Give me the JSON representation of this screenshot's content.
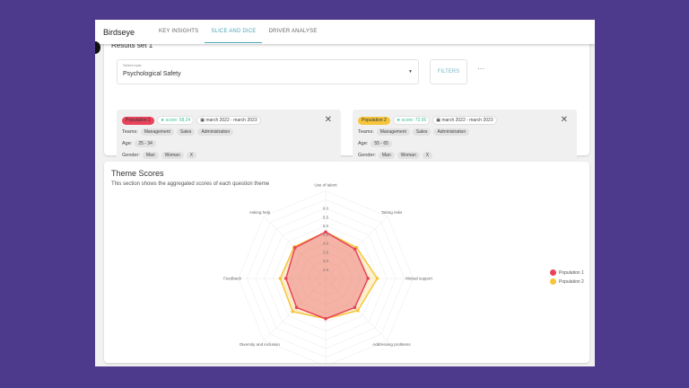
{
  "header": {
    "brand": "Birdseye",
    "tabs": [
      {
        "label": "KEY INSIGHTS"
      },
      {
        "label": "SLICE AND DICE",
        "active": true
      },
      {
        "label": "DRIVER ANALYSE"
      }
    ]
  },
  "results": {
    "title": "Results set 1",
    "topic_label": "Select topic",
    "topic_value": "Psychological Safety",
    "filters_label": "FILTERS",
    "more_label": "···",
    "populations": [
      {
        "name": "Population 1",
        "color": "#e8435a",
        "score": "score: 58.24",
        "date": "march 2022 - march 2023",
        "teams_label": "Teams:",
        "teams": [
          "Management",
          "Sales",
          "Administration"
        ],
        "age_label": "Age:",
        "age": "25 - 34",
        "gender_label": "Gender:",
        "gender": [
          "Man",
          "Woman",
          "X"
        ]
      },
      {
        "name": "Population 2",
        "color": "#f5c53b",
        "score": "score: 72.05",
        "date": "march 2022 - march 2023",
        "teams_label": "Teams:",
        "teams": [
          "Management",
          "Sales",
          "Administration"
        ],
        "age_label": "Age:",
        "age": "55 - 65",
        "gender_label": "Gender:",
        "gender": [
          "Man",
          "Woman",
          "X"
        ]
      }
    ]
  },
  "theme": {
    "title": "Theme Scores",
    "subtitle": "This section shows the aggregated scores of each question theme"
  },
  "chart_data": {
    "type": "radar",
    "axes": [
      "Use of talent",
      "Taking risks",
      "Mutual support",
      "Addressing problems",
      "Dealing with mistakes",
      "Diversity and inclusion",
      "Feedback",
      "Asking help"
    ],
    "rlim": [
      2.0,
      6.0
    ],
    "ticks": [
      "6.0",
      "5.5",
      "5.0",
      "4.5",
      "4.0",
      "3.5",
      "3.0",
      "2.5"
    ],
    "tick_values": [
      6.0,
      5.5,
      5.0,
      4.5,
      4.0,
      3.5,
      3.0,
      2.5
    ],
    "series": [
      {
        "name": "Population 1",
        "color": "#e8435a",
        "values": [
          4.65,
          4.37,
          4.42,
          4.35,
          4.3,
          4.35,
          4.27,
          4.48
        ]
      },
      {
        "name": "Population 2",
        "color": "#f5c53b",
        "values": [
          4.65,
          4.5,
          4.95,
          4.6,
          4.3,
          4.67,
          4.6,
          4.55
        ]
      }
    ],
    "legend": "right"
  }
}
